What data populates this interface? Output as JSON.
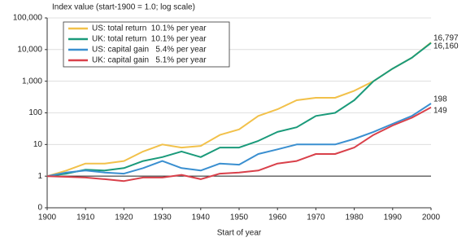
{
  "chart_data": {
    "type": "line",
    "title": "Index value (start-1900 = 1.0; log scale)",
    "x_label": "Start of year",
    "log_scale": true,
    "grid": true,
    "legend": "upper left",
    "hline": 1,
    "x": [
      1900,
      1905,
      1910,
      1915,
      1920,
      1925,
      1930,
      1935,
      1940,
      1945,
      1950,
      1955,
      1960,
      1965,
      1970,
      1975,
      1980,
      1985,
      1990,
      1995,
      2000
    ],
    "xlim": [
      1900,
      2000
    ],
    "xticks": [
      1900,
      1910,
      1920,
      1930,
      1940,
      1950,
      1960,
      1970,
      1980,
      1990,
      2000
    ],
    "ylim": [
      0.1,
      100000
    ],
    "yticks": [
      {
        "value": 0.1,
        "label": "0"
      },
      1,
      10,
      100,
      {
        "value": 1000,
        "label": "1,000"
      },
      {
        "value": 10000,
        "label": "10,000"
      },
      {
        "value": 100000,
        "label": "100,000"
      }
    ],
    "series": [
      {
        "name": "US: total return  10.1% per year",
        "color": "#f2c14a",
        "end_label": "16,797",
        "values": [
          1,
          1.5,
          2.5,
          2.5,
          3,
          6,
          10,
          8,
          9,
          20,
          30,
          80,
          130,
          250,
          300,
          300,
          500,
          1000,
          2500,
          5500,
          16797
        ]
      },
      {
        "name": "UK: total return  10.1% per year",
        "color": "#1a9a7a",
        "end_label": "16,160",
        "values": [
          1,
          1.2,
          1.6,
          1.5,
          1.8,
          3,
          4,
          6,
          4,
          8,
          8,
          13,
          25,
          35,
          80,
          100,
          250,
          1000,
          2500,
          5500,
          16160
        ]
      },
      {
        "name": "US: capital gain   5.4% per year",
        "color": "#3a8fd0",
        "end_label": "198",
        "values": [
          1,
          1.3,
          1.5,
          1.3,
          1.2,
          1.8,
          3,
          1.8,
          1.5,
          2.5,
          2.3,
          5,
          7,
          10,
          10,
          10,
          15,
          25,
          45,
          80,
          198
        ]
      },
      {
        "name": "UK: capital gain   5.1% per year",
        "color": "#d9404a",
        "end_label": "149",
        "values": [
          1,
          0.95,
          0.9,
          0.8,
          0.7,
          0.9,
          0.9,
          1.1,
          0.8,
          1.2,
          1.3,
          1.5,
          2.5,
          3,
          5,
          5,
          8,
          20,
          40,
          70,
          149
        ]
      }
    ]
  }
}
